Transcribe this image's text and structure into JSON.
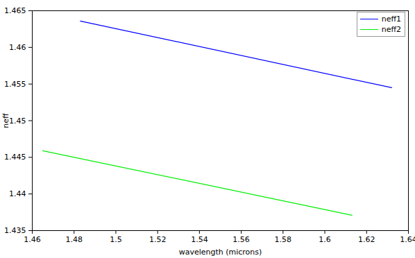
{
  "chart_data": {
    "type": "line",
    "x_label": "wavelength (microns)",
    "y_label": "neff",
    "series": [
      {
        "name": "neff1",
        "color": "#0000ff",
        "x": [
          1.483,
          1.632
        ],
        "values": [
          1.4636,
          1.4545
        ]
      },
      {
        "name": "neff2",
        "color": "#00ee00",
        "x": [
          1.465,
          1.613
        ],
        "values": [
          1.4459,
          1.4371
        ]
      }
    ],
    "xlim": [
      1.46,
      1.64
    ],
    "xticks": [
      1.46,
      1.48,
      1.5,
      1.52,
      1.54,
      1.56,
      1.58,
      1.6,
      1.62,
      1.64
    ],
    "ylim": [
      1.435,
      1.465
    ],
    "yticks": [
      1.435,
      1.44,
      1.445,
      1.45,
      1.455,
      1.46,
      1.465
    ],
    "grid": false,
    "legend": "top-right"
  }
}
